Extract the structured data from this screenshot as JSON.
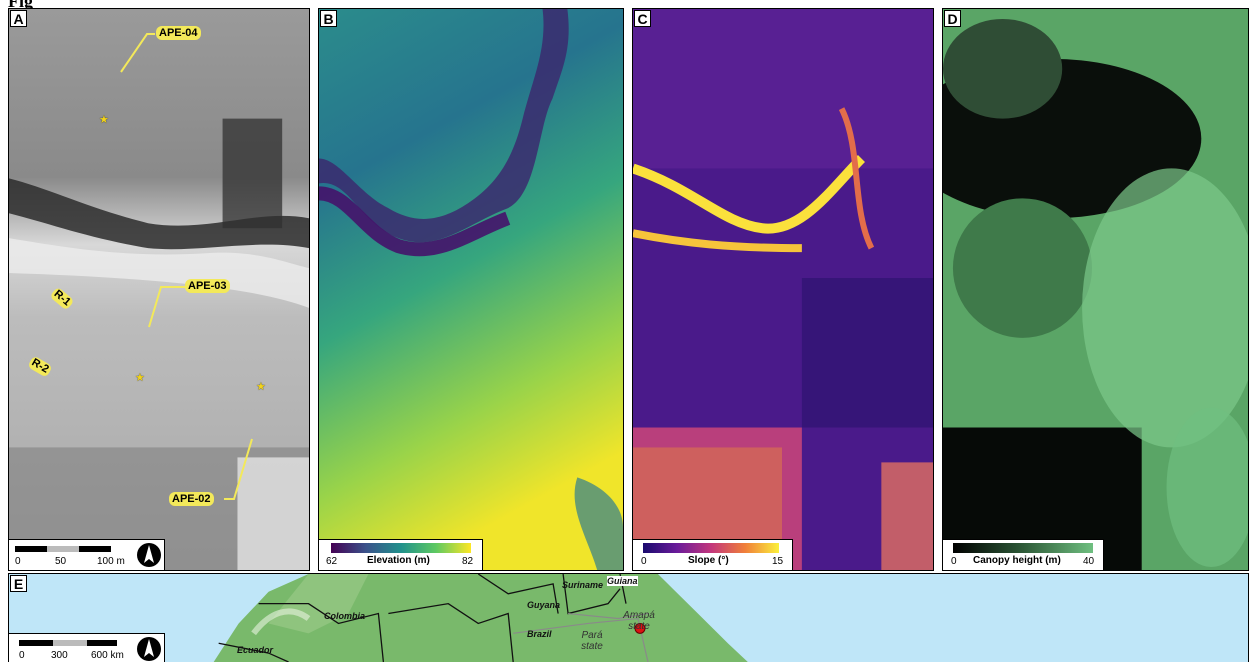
{
  "figure_title": "Fig",
  "panels": {
    "a": {
      "label": "A",
      "callouts": [
        "APE-04",
        "APE-03",
        "APE-02"
      ],
      "ridges": [
        "R-1",
        "R-2"
      ],
      "scale": {
        "t0": "0",
        "t1": "50",
        "t2": "100 m"
      }
    },
    "b": {
      "label": "B",
      "legend_title": "Elevation (m)",
      "min": "62",
      "max": "82",
      "colors": [
        "#440154",
        "#3b528b",
        "#21918c",
        "#5ec962",
        "#fde725"
      ]
    },
    "c": {
      "label": "C",
      "legend_title": "Slope (°)",
      "min": "0",
      "max": "15",
      "colors": [
        "#1a0a6e",
        "#6a1b9a",
        "#c2367c",
        "#f07f3a",
        "#fbf03c"
      ]
    },
    "d": {
      "label": "D",
      "legend_title": "Canopy height (m)",
      "min": "0",
      "max": "40",
      "colors": [
        "#000000",
        "#2e5a38",
        "#6fbf80"
      ]
    },
    "e": {
      "label": "E",
      "countries": [
        "Colombia",
        "Suriname",
        "Guiana",
        "Guyana",
        "Brazil",
        "Ecuador"
      ],
      "states": [
        "Pará state",
        "Amapá state"
      ],
      "scale": {
        "t0": "0",
        "t1": "300",
        "t2": "600 km"
      }
    }
  }
}
